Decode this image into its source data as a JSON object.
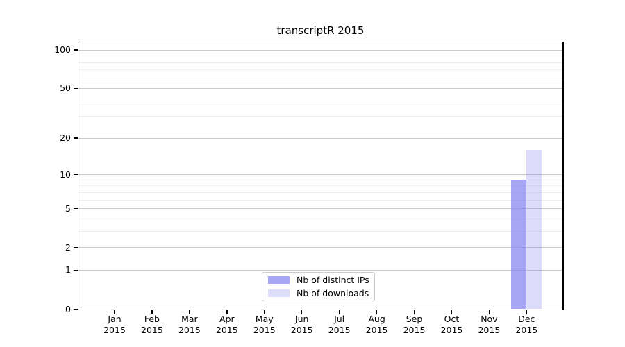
{
  "chart_data": {
    "type": "bar",
    "title": "transcriptR 2015",
    "months": [
      "Jan",
      "Feb",
      "Mar",
      "Apr",
      "May",
      "Jun",
      "Jul",
      "Aug",
      "Sep",
      "Oct",
      "Nov",
      "Dec"
    ],
    "year": "2015",
    "categories": [
      "Jan 2015",
      "Feb 2015",
      "Mar 2015",
      "Apr 2015",
      "May 2015",
      "Jun 2015",
      "Jul 2015",
      "Aug 2015",
      "Sep 2015",
      "Oct 2015",
      "Nov 2015",
      "Dec 2015"
    ],
    "series": [
      {
        "name": "Nb of distinct IPs",
        "color": "rgba(128,128,240,0.7)",
        "values": [
          0,
          0,
          0,
          0,
          0,
          0,
          0,
          0,
          0,
          0,
          0,
          9
        ]
      },
      {
        "name": "Nb of downloads",
        "color": "rgba(128,128,240,0.27)",
        "values": [
          0,
          0,
          0,
          0,
          0,
          0,
          0,
          0,
          0,
          0,
          0,
          16
        ]
      }
    ],
    "xlabel": "",
    "ylabel": "",
    "y_scale": "log1p",
    "y_ticks": [
      0,
      1,
      2,
      5,
      10,
      20,
      50,
      100
    ],
    "y_minor_gridlines": [
      3,
      4,
      6,
      7,
      8,
      9,
      30,
      40,
      60,
      70,
      80,
      90
    ],
    "ylim": [
      0,
      115
    ],
    "grid": true,
    "legend_position": "lower center",
    "colors": {
      "axis": "#000000",
      "major_grid": "#c9c9c9",
      "minor_grid": "#ededed",
      "background": "#ffffff",
      "text": "#000000"
    }
  }
}
